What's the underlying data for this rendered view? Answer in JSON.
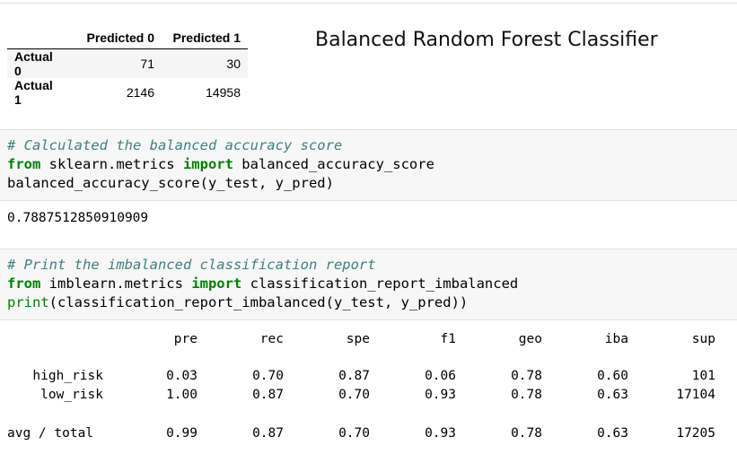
{
  "confusion_matrix": {
    "columns": [
      "Predicted 0",
      "Predicted 1"
    ],
    "rows": [
      {
        "label": "Actual 0",
        "values": [
          "71",
          "30"
        ]
      },
      {
        "label": "Actual 1",
        "values": [
          "2146",
          "14958"
        ]
      }
    ]
  },
  "title": "Balanced Random Forest Classifier",
  "cell1": {
    "comment": "# Calculated the balanced accuracy score",
    "kw_from": "from",
    "module": " sklearn.metrics ",
    "kw_import": "import",
    "name": " balanced_accuracy_score",
    "call": "balanced_accuracy_score(y_test, y_pred)"
  },
  "output1": "0.7887512850910909",
  "cell2": {
    "comment": "# Print the imbalanced classification report",
    "kw_from": "from",
    "module": " imblearn.metrics ",
    "kw_import": "import",
    "name": " classification_report_imbalanced",
    "print": "print",
    "call": "(classification_report_imbalanced(y_test, y_pred))"
  },
  "report": {
    "headers": [
      "pre",
      "rec",
      "spe",
      "f1",
      "geo",
      "iba",
      "sup"
    ],
    "rows": [
      {
        "label": "high_risk",
        "values": [
          "0.03",
          "0.70",
          "0.87",
          "0.06",
          "0.78",
          "0.60",
          "101"
        ]
      },
      {
        "label": "low_risk",
        "values": [
          "1.00",
          "0.87",
          "0.70",
          "0.93",
          "0.78",
          "0.63",
          "17104"
        ]
      },
      {
        "label": "avg / total",
        "values": [
          "0.99",
          "0.87",
          "0.70",
          "0.93",
          "0.78",
          "0.63",
          "17205"
        ]
      }
    ]
  }
}
